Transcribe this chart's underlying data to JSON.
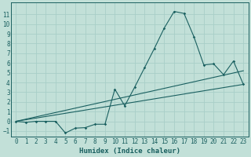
{
  "bg_color": "#c2e0d8",
  "grid_color": "#a8cfc8",
  "line_color": "#1a6060",
  "xlabel": "Humidex (Indice chaleur)",
  "xlabel_fontsize": 6.5,
  "tick_fontsize": 5.5,
  "xlim": [
    -0.5,
    23.5
  ],
  "ylim": [
    -1.6,
    12.2
  ],
  "yticks": [
    -1,
    0,
    1,
    2,
    3,
    4,
    5,
    6,
    7,
    8,
    9,
    10,
    11
  ],
  "xticks": [
    0,
    1,
    2,
    3,
    4,
    5,
    6,
    7,
    8,
    9,
    10,
    11,
    12,
    13,
    14,
    15,
    16,
    17,
    18,
    19,
    20,
    21,
    22,
    23
  ],
  "main_x": [
    0,
    1,
    2,
    3,
    4,
    5,
    6,
    7,
    8,
    9,
    10,
    11,
    12,
    13,
    14,
    15,
    16,
    17,
    18,
    19,
    20,
    21,
    22,
    23
  ],
  "main_y": [
    0,
    -0.1,
    0.0,
    0.0,
    0.0,
    -1.2,
    -0.7,
    -0.65,
    -0.3,
    -0.3,
    3.3,
    1.6,
    3.5,
    5.5,
    7.5,
    9.6,
    11.3,
    11.1,
    8.7,
    5.8,
    5.9,
    4.8,
    6.2,
    3.8
  ],
  "line1_x": [
    0,
    23
  ],
  "line1_y": [
    0.0,
    3.8
  ],
  "line2_x": [
    0,
    23
  ],
  "line2_y": [
    0.0,
    5.2
  ]
}
